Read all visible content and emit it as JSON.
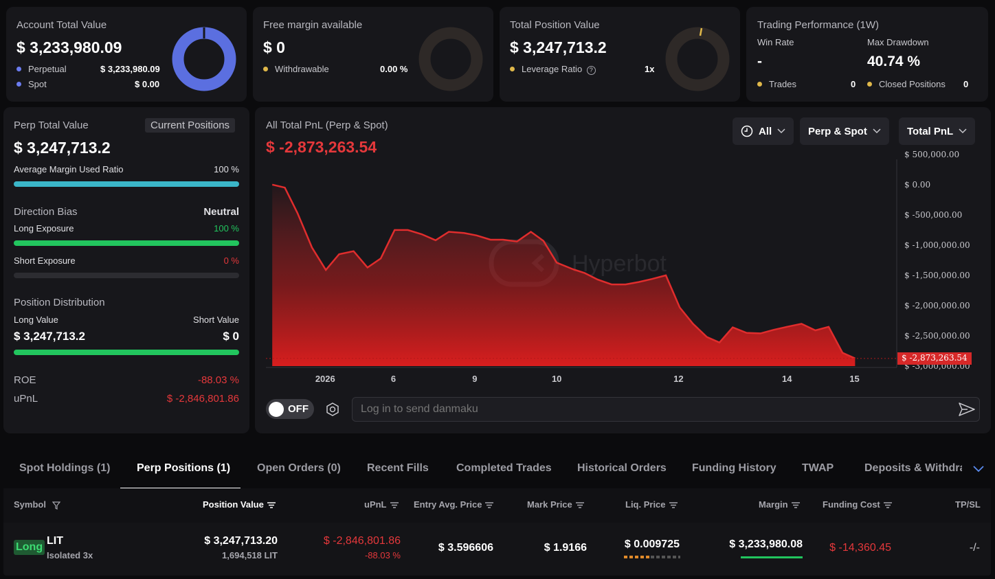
{
  "summary": {
    "account": {
      "label": "Account Total Value",
      "value": "$ 3,233,980.09",
      "rows": [
        {
          "label": "Perpetual",
          "value": "$ 3,233,980.09"
        },
        {
          "label": "Spot",
          "value": "$ 0.00"
        }
      ]
    },
    "margin": {
      "label": "Free margin available",
      "value": "$ 0",
      "row_label": "Withdrawable",
      "row_value": "0.00 %"
    },
    "position": {
      "label": "Total Position Value",
      "value": "$ 3,247,713.2",
      "row_label": "Leverage Ratio",
      "row_value": "1x"
    },
    "performance": {
      "label": "Trading Performance (1W)",
      "win_rate_label": "Win Rate",
      "win_rate": "-",
      "drawdown_label": "Max Drawdown",
      "drawdown": "40.74 %",
      "trades_label": "Trades",
      "trades": "0",
      "closed_label": "Closed Positions",
      "closed": "0"
    }
  },
  "perp": {
    "title": "Perp Total Value",
    "tab": "Current Positions",
    "value": "$ 3,247,713.2",
    "margin_ratio_label": "Average Margin Used Ratio",
    "margin_ratio": "100 %",
    "margin_ratio_fraction": 1.0,
    "bias_label": "Direction Bias",
    "bias": "Neutral",
    "long_label": "Long Exposure",
    "long_pct": "100 %",
    "long_fraction": 1.0,
    "short_label": "Short Exposure",
    "short_pct": "0 %",
    "short_fraction": 0.0,
    "dist_label": "Position Distribution",
    "long_value_label": "Long Value",
    "short_value_label": "Short Value",
    "long_value": "$ 3,247,713.2",
    "short_value": "$ 0",
    "roe_label": "ROE",
    "roe": "-88.03 %",
    "upnl_label": "uPnL",
    "upnl": "$ -2,846,801.86"
  },
  "pnl": {
    "title": "All Total PnL (Perp & Spot)",
    "value": "$ -2,873,263.54",
    "filters": [
      "All",
      "Perp & Spot",
      "Total PnL"
    ],
    "watermark": "Hyperbot",
    "toggle": "OFF",
    "danmaku_placeholder": "Log in to send danmaku",
    "current_label": "$ -2,873,263.54"
  },
  "chart_data": {
    "type": "area",
    "ylim": [
      -3000000,
      600000
    ],
    "y_ticks": [
      500000,
      0,
      -500000,
      -1000000,
      -1500000,
      -2000000,
      -2500000,
      -3000000
    ],
    "y_tick_labels": [
      "$ 500,000.00",
      "$ 0.00",
      "$ -500,000.00",
      "$ -1,000,000.00",
      "$ -1,500,000.00",
      "$ -2,000,000.00",
      "$ -2,500,000.00",
      "$ -3,000,000.00"
    ],
    "x_tick_labels": [
      "2026",
      "6",
      "9",
      "10",
      "12",
      "14",
      "15"
    ],
    "x_tick_positions": [
      0.094,
      0.202,
      0.331,
      0.461,
      0.654,
      0.826,
      0.933
    ],
    "x": [
      0.01,
      0.03,
      0.05,
      0.073,
      0.095,
      0.116,
      0.139,
      0.161,
      0.182,
      0.204,
      0.225,
      0.247,
      0.269,
      0.29,
      0.314,
      0.334,
      0.356,
      0.376,
      0.398,
      0.42,
      0.44,
      0.461,
      0.487,
      0.505,
      0.526,
      0.548,
      0.57,
      0.591,
      0.612,
      0.634,
      0.656,
      0.677,
      0.699,
      0.719,
      0.74,
      0.762,
      0.784,
      0.805,
      0.826,
      0.849,
      0.871,
      0.892,
      0.914,
      0.934
    ],
    "values": [
      0,
      -50000,
      -470000,
      -1040000,
      -1410000,
      -1150000,
      -1100000,
      -1370000,
      -1220000,
      -750000,
      -750000,
      -820000,
      -920000,
      -780000,
      -800000,
      -840000,
      -910000,
      -910000,
      -940000,
      -780000,
      -930000,
      -1290000,
      -1400000,
      -1460000,
      -1570000,
      -1650000,
      -1650000,
      -1610000,
      -1560000,
      -1500000,
      -2030000,
      -2300000,
      -2520000,
      -2610000,
      -2360000,
      -2450000,
      -2460000,
      -2400000,
      -2350000,
      -2300000,
      -2410000,
      -2350000,
      -2780000,
      -2873263
    ]
  },
  "tabs": [
    "Spot Holdings (1)",
    "Perp Positions (1)",
    "Open Orders (0)",
    "Recent Fills",
    "Completed Trades",
    "Historical Orders",
    "Funding History",
    "TWAP",
    "Deposits & Withdraw"
  ],
  "table": {
    "headers": [
      "Symbol",
      "Position Value",
      "uPnL",
      "Entry Avg. Price",
      "Mark Price",
      "Liq. Price",
      "Margin",
      "Funding Cost",
      "TP/SL"
    ],
    "row": {
      "side": "Long",
      "symbol": "LIT",
      "mode": "Isolated 3x",
      "position_value": "$ 3,247,713.20",
      "position_qty": "1,694,518 LIT",
      "upnl": "$ -2,846,801.86",
      "upnl_pct": "-88.03 %",
      "entry": "$ 3.596606",
      "mark": "$ 1.9166",
      "liq": "$ 0.009725",
      "margin": "$ 3,233,980.08",
      "funding": "$ -14,360.45",
      "tpsl": "-/-"
    }
  },
  "colors": {
    "accent_blue": "#5b6fe0",
    "bar_cyan": "#3bb6c8",
    "green": "#22c55e",
    "red": "#e5383b",
    "gold": "#e0b84a",
    "blue_dot": "#6b7cf0"
  }
}
